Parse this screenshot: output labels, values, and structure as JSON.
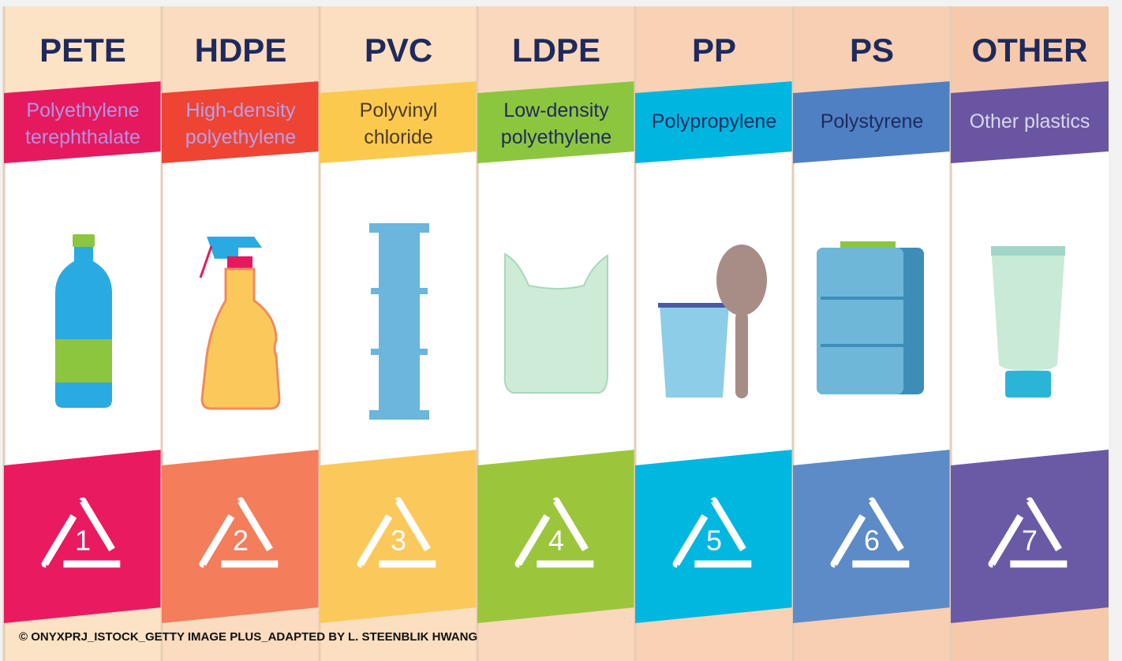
{
  "columns": [
    {
      "code": "PETE",
      "name": [
        "Polyethylene",
        "terephthalate"
      ],
      "number": 1
    },
    {
      "code": "HDPE",
      "name": [
        "High-density",
        "polyethylene"
      ],
      "number": 2
    },
    {
      "code": "PVC",
      "name": [
        "Polyvinyl",
        "chloride"
      ],
      "number": 3
    },
    {
      "code": "LDPE",
      "name": [
        "Low-density",
        "polyethylene"
      ],
      "number": 4
    },
    {
      "code": "PP",
      "name": [
        "Polypropylene"
      ],
      "number": 5
    },
    {
      "code": "PS",
      "name": [
        "Polystyrene"
      ],
      "number": 6
    },
    {
      "code": "OTHER",
      "name": [
        "Other plastics"
      ],
      "number": 7
    }
  ],
  "credit": "© ONYXPRJ_ISTOCK_GETTY IMAGE PLUS_ADAPTED BY L. STEENBLIK HWANG"
}
